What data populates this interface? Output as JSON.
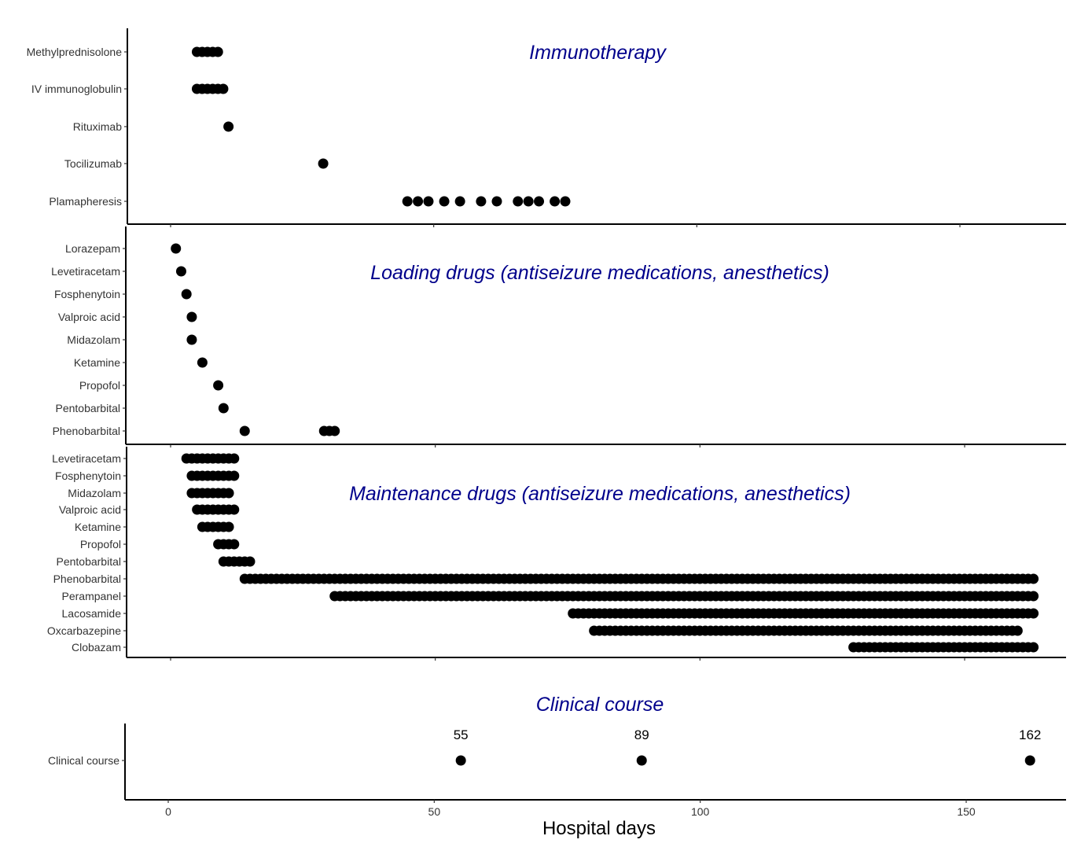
{
  "chart_data": [
    {
      "type": "scatter",
      "title": "Immunotherapy",
      "categories": [
        "Methylprednisolone",
        "IV immunoglobulin",
        "Rituximab",
        "Tocilizumab",
        "Plamapheresis"
      ],
      "series": [
        {
          "category": "Methylprednisolone",
          "x": [
            5,
            6,
            7,
            8,
            9
          ]
        },
        {
          "category": "IV immunoglobulin",
          "x": [
            5,
            6,
            7,
            8,
            9,
            10
          ]
        },
        {
          "category": "Rituximab",
          "x": [
            11
          ]
        },
        {
          "category": "Tocilizumab",
          "x": [
            29
          ]
        },
        {
          "category": "Plamapheresis",
          "x": [
            45,
            47,
            49,
            52,
            55,
            59,
            62,
            66,
            68,
            70,
            73,
            75
          ]
        }
      ],
      "xlim": [
        -8,
        170
      ]
    },
    {
      "type": "scatter",
      "title": "Loading drugs (antiseizure medications, anesthetics)",
      "categories": [
        "Lorazepam",
        "Levetiracetam",
        "Fosphenytoin",
        "Valproic acid",
        "Midazolam",
        "Ketamine",
        "Propofol",
        "Pentobarbital",
        "Phenobarbital"
      ],
      "series": [
        {
          "category": "Lorazepam",
          "x": [
            1
          ]
        },
        {
          "category": "Levetiracetam",
          "x": [
            2
          ]
        },
        {
          "category": "Fosphenytoin",
          "x": [
            3
          ]
        },
        {
          "category": "Valproic acid",
          "x": [
            4
          ]
        },
        {
          "category": "Midazolam",
          "x": [
            4
          ]
        },
        {
          "category": "Ketamine",
          "x": [
            6
          ]
        },
        {
          "category": "Propofol",
          "x": [
            9
          ]
        },
        {
          "category": "Pentobarbital",
          "x": [
            10
          ]
        },
        {
          "category": "Phenobarbital",
          "x": [
            14,
            29,
            30,
            31
          ]
        }
      ],
      "xlim": [
        -8,
        170
      ]
    },
    {
      "type": "scatter",
      "title": "Maintenance drugs (antiseizure medications, anesthetics)",
      "categories": [
        "Levetiracetam",
        "Fosphenytoin",
        "Midazolam",
        "Valproic acid",
        "Ketamine",
        "Propofol",
        "Pentobarbital",
        "Phenobarbital",
        "Perampanel",
        "Lacosamide",
        "Oxcarbazepine",
        "Clobazam"
      ],
      "series": [
        {
          "category": "Levetiracetam",
          "range": [
            3,
            12
          ]
        },
        {
          "category": "Fosphenytoin",
          "range": [
            4,
            12
          ]
        },
        {
          "category": "Midazolam",
          "range": [
            4,
            11
          ]
        },
        {
          "category": "Valproic acid",
          "range": [
            5,
            12
          ]
        },
        {
          "category": "Ketamine",
          "range": [
            6,
            11
          ]
        },
        {
          "category": "Propofol",
          "range": [
            9,
            12
          ]
        },
        {
          "category": "Pentobarbital",
          "range": [
            10,
            15
          ]
        },
        {
          "category": "Phenobarbital",
          "range": [
            14,
            163
          ]
        },
        {
          "category": "Perampanel",
          "range": [
            31,
            163
          ]
        },
        {
          "category": "Lacosamide",
          "range": [
            76,
            163
          ]
        },
        {
          "category": "Oxcarbazepine",
          "range": [
            80,
            160
          ]
        },
        {
          "category": "Clobazam",
          "range": [
            129,
            163
          ]
        }
      ],
      "xlim": [
        -8,
        170
      ]
    },
    {
      "type": "scatter",
      "title": "Clinical course",
      "categories": [
        "Clinical course"
      ],
      "series": [
        {
          "category": "Clinical course",
          "x": [
            55,
            89,
            162
          ],
          "labels": [
            "55",
            "89",
            "162"
          ]
        }
      ],
      "xlim": [
        -8,
        170
      ],
      "xticks": [
        "0",
        "50",
        "100",
        "150"
      ],
      "xticks_values": [
        0,
        50,
        100,
        150
      ],
      "xlabel": "Hospital days"
    }
  ]
}
